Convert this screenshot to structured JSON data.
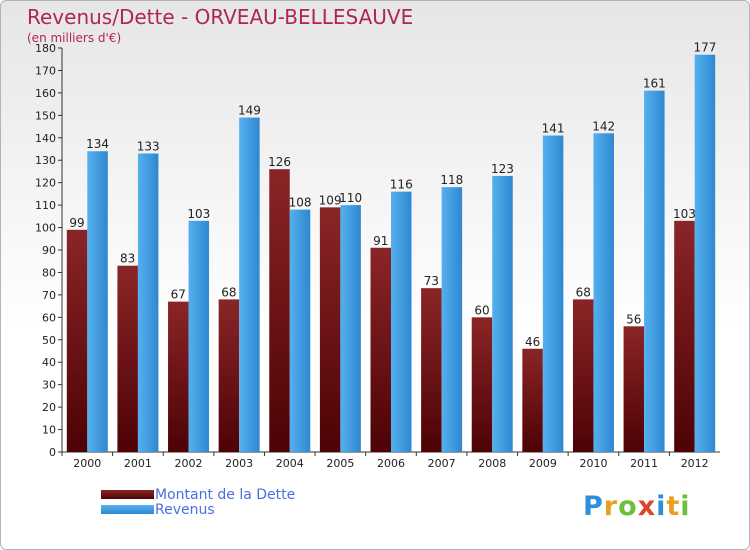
{
  "colors": {
    "debt": "#7a1517",
    "revenue": "#3f9de2",
    "title": "#b0245a",
    "legend_text": "#4a6ee0"
  },
  "chart_data": {
    "type": "bar",
    "title": "Revenus/Dette - ORVEAU-BELLESAUVE",
    "subtitle": "(en milliers d'€)",
    "categories": [
      "2000",
      "2001",
      "2002",
      "2003",
      "2004",
      "2005",
      "2006",
      "2007",
      "2008",
      "2009",
      "2010",
      "2011",
      "2012"
    ],
    "series": [
      {
        "name": "Montant de la Dette",
        "values": [
          99,
          83,
          67,
          68,
          126,
          109,
          91,
          73,
          60,
          46,
          68,
          56,
          103
        ]
      },
      {
        "name": "Revenus",
        "values": [
          134,
          133,
          103,
          149,
          108,
          110,
          116,
          118,
          123,
          141,
          142,
          161,
          177
        ]
      }
    ],
    "ylim": [
      0,
      180
    ],
    "yticks": [
      0,
      10,
      20,
      30,
      40,
      50,
      60,
      70,
      80,
      90,
      100,
      110,
      120,
      130,
      140,
      150,
      160,
      170,
      180
    ],
    "grid": false,
    "legend_position": "bottom-left"
  },
  "logo": {
    "letters": [
      "P",
      "r",
      "o",
      "x",
      "i",
      "t",
      "i"
    ],
    "colors": [
      "#2b8fd9",
      "#e8a020",
      "#6bbf3a",
      "#d9462b",
      "#2b8fd9",
      "#e8a020",
      "#6bbf3a"
    ]
  }
}
